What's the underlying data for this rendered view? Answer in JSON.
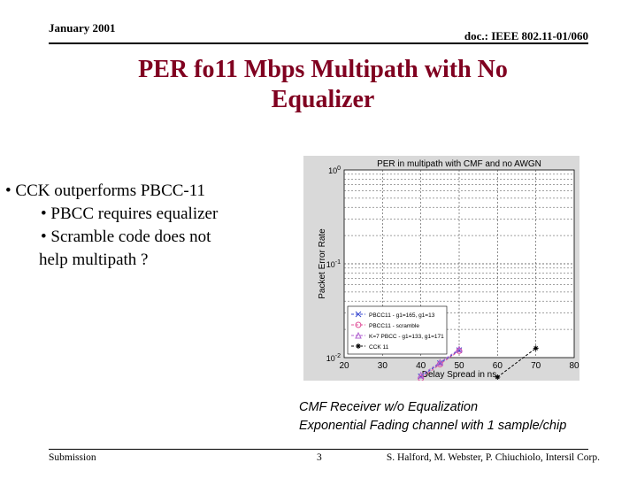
{
  "header": {
    "date": "January 2001",
    "doc": "doc.: IEEE 802.11-01/060"
  },
  "slide": {
    "title_line1": "PER fo11 Mbps Multipath with No",
    "title_line2": "Equalizer",
    "bullets": {
      "main": "• CCK outperforms PBCC-11",
      "sub1": "• PBCC requires equalizer",
      "sub2_line1": "• Scramble code does not",
      "sub2_line2": "help multipath ?"
    },
    "caption_line1": "CMF Receiver w/o Equalization",
    "caption_line2": "Exponential Fading channel with 1 sample/chip"
  },
  "footer": {
    "left": "Submission",
    "page": "3",
    "right": "S. Halford, M. Webster, P. Chiuchiolo, Intersil Corp."
  },
  "colors": {
    "title": "#800020",
    "plot_bg": "#d9d9d9",
    "pbcc_a": "#3b4bd0",
    "pbcc_b": "#e0509a",
    "pbcc_c": "#b060d0",
    "cck": "#000000"
  },
  "chart_data": {
    "type": "line",
    "title": "PER in multipath with CMF and no AWGN",
    "xlabel": "Delay Spread in ns",
    "ylabel": "Packet Error Rate",
    "xlim": [
      20,
      80
    ],
    "ylim_log10": [
      -2,
      0
    ],
    "log_y": true,
    "x_ticks": [
      "20",
      "30",
      "40",
      "50",
      "60",
      "70",
      "80"
    ],
    "y_ticks": [
      "10^-2",
      "10^-1",
      "10^0"
    ],
    "grid": true,
    "legend_position": "bottom-left",
    "series": [
      {
        "name": "PBCC11 - g1=165, g1=13",
        "x": [
          40,
          45,
          50
        ],
        "y": [
          0.0063,
          0.0087,
          0.012
        ],
        "color": "#3b4bd0",
        "marker": "x"
      },
      {
        "name": "PBCC11 - scramble",
        "x": [
          40,
          45,
          50
        ],
        "y": [
          0.006,
          0.0085,
          0.0118
        ],
        "color": "#e0509a",
        "marker": "o"
      },
      {
        "name": "K=7 PBCC - g1=133, g1=171",
        "x": [
          40,
          45,
          50
        ],
        "y": [
          0.0065,
          0.0089,
          0.0123
        ],
        "color": "#b060d0",
        "marker": "^"
      },
      {
        "name": "CCK 11",
        "x": [
          60,
          70
        ],
        "y": [
          0.0062,
          0.0126
        ],
        "color": "#000000",
        "marker": "*"
      }
    ]
  }
}
